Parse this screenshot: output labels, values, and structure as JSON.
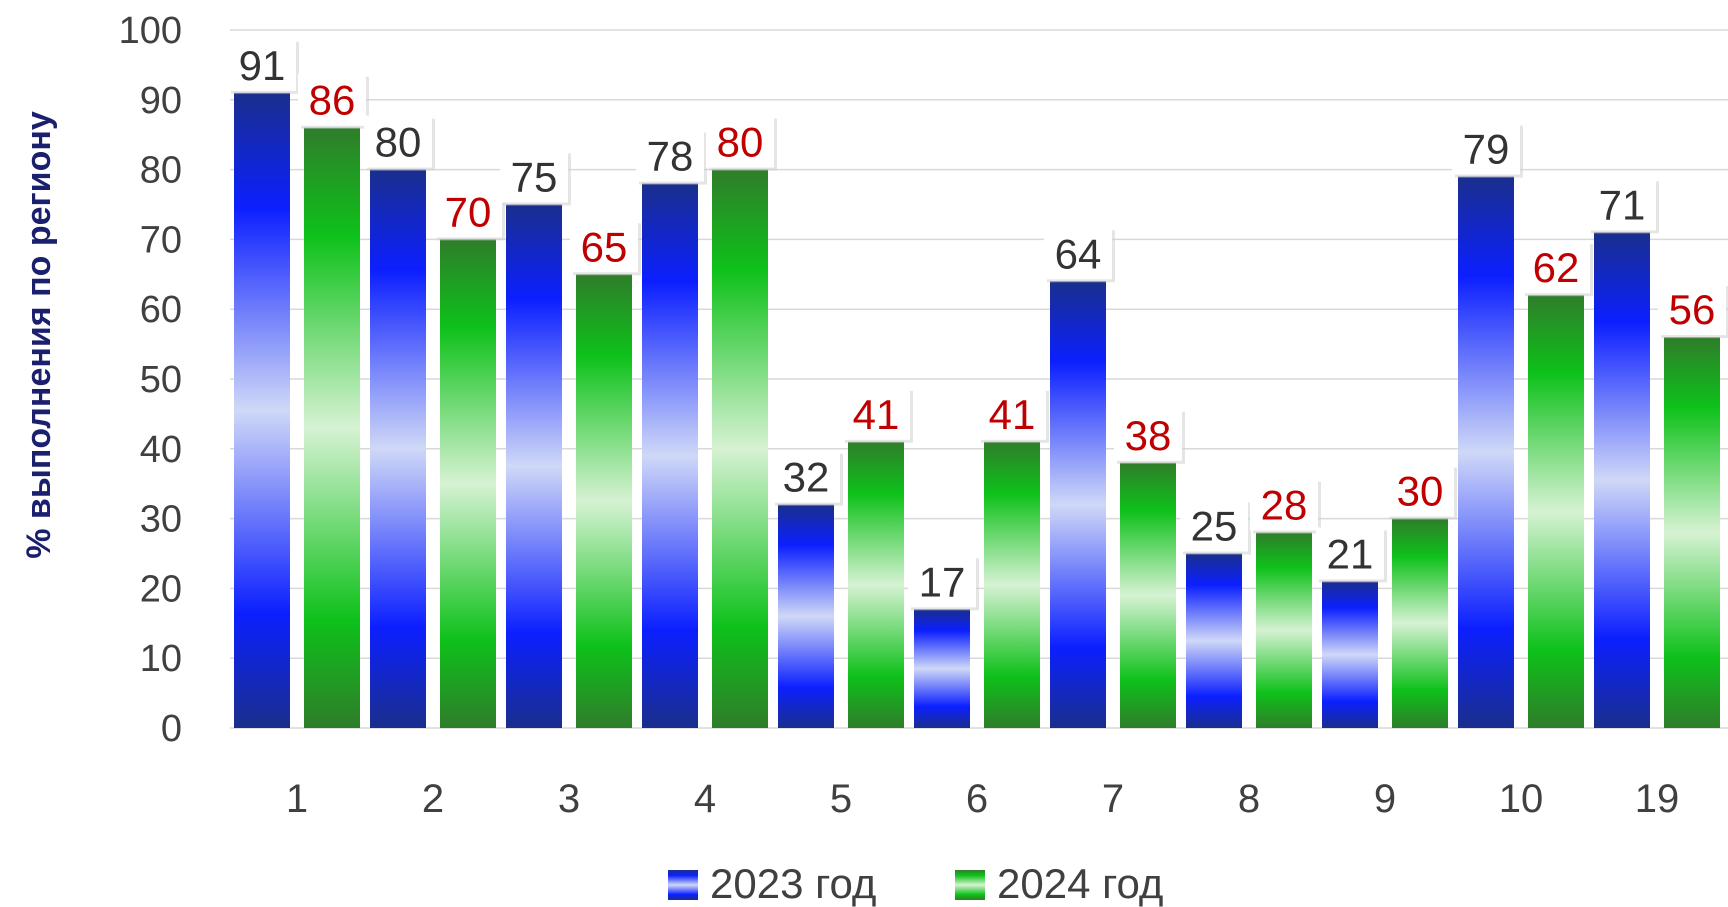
{
  "chart_data": {
    "type": "bar",
    "ylabel": "% выполнения по региону",
    "xlabel": "",
    "ylim": [
      0,
      100
    ],
    "yticks": [
      "0",
      "10",
      "20",
      "30",
      "40",
      "50",
      "60",
      "70",
      "80",
      "90",
      "100"
    ],
    "grid": true,
    "legend_position": "bottom",
    "categories": [
      "1",
      "2",
      "3",
      "4",
      "5",
      "6",
      "7",
      "8",
      "9",
      "10",
      "19"
    ],
    "series": [
      {
        "name": "2023 год",
        "color": "#0a1fff",
        "label_color": "#333333",
        "values": [
          91,
          80,
          75,
          78,
          32,
          17,
          64,
          25,
          21,
          79,
          71
        ]
      },
      {
        "name": "2024 год",
        "color": "#10a81a",
        "label_color": "#c00000",
        "values": [
          86,
          70,
          65,
          80,
          41,
          41,
          38,
          28,
          30,
          62,
          56
        ]
      }
    ]
  }
}
